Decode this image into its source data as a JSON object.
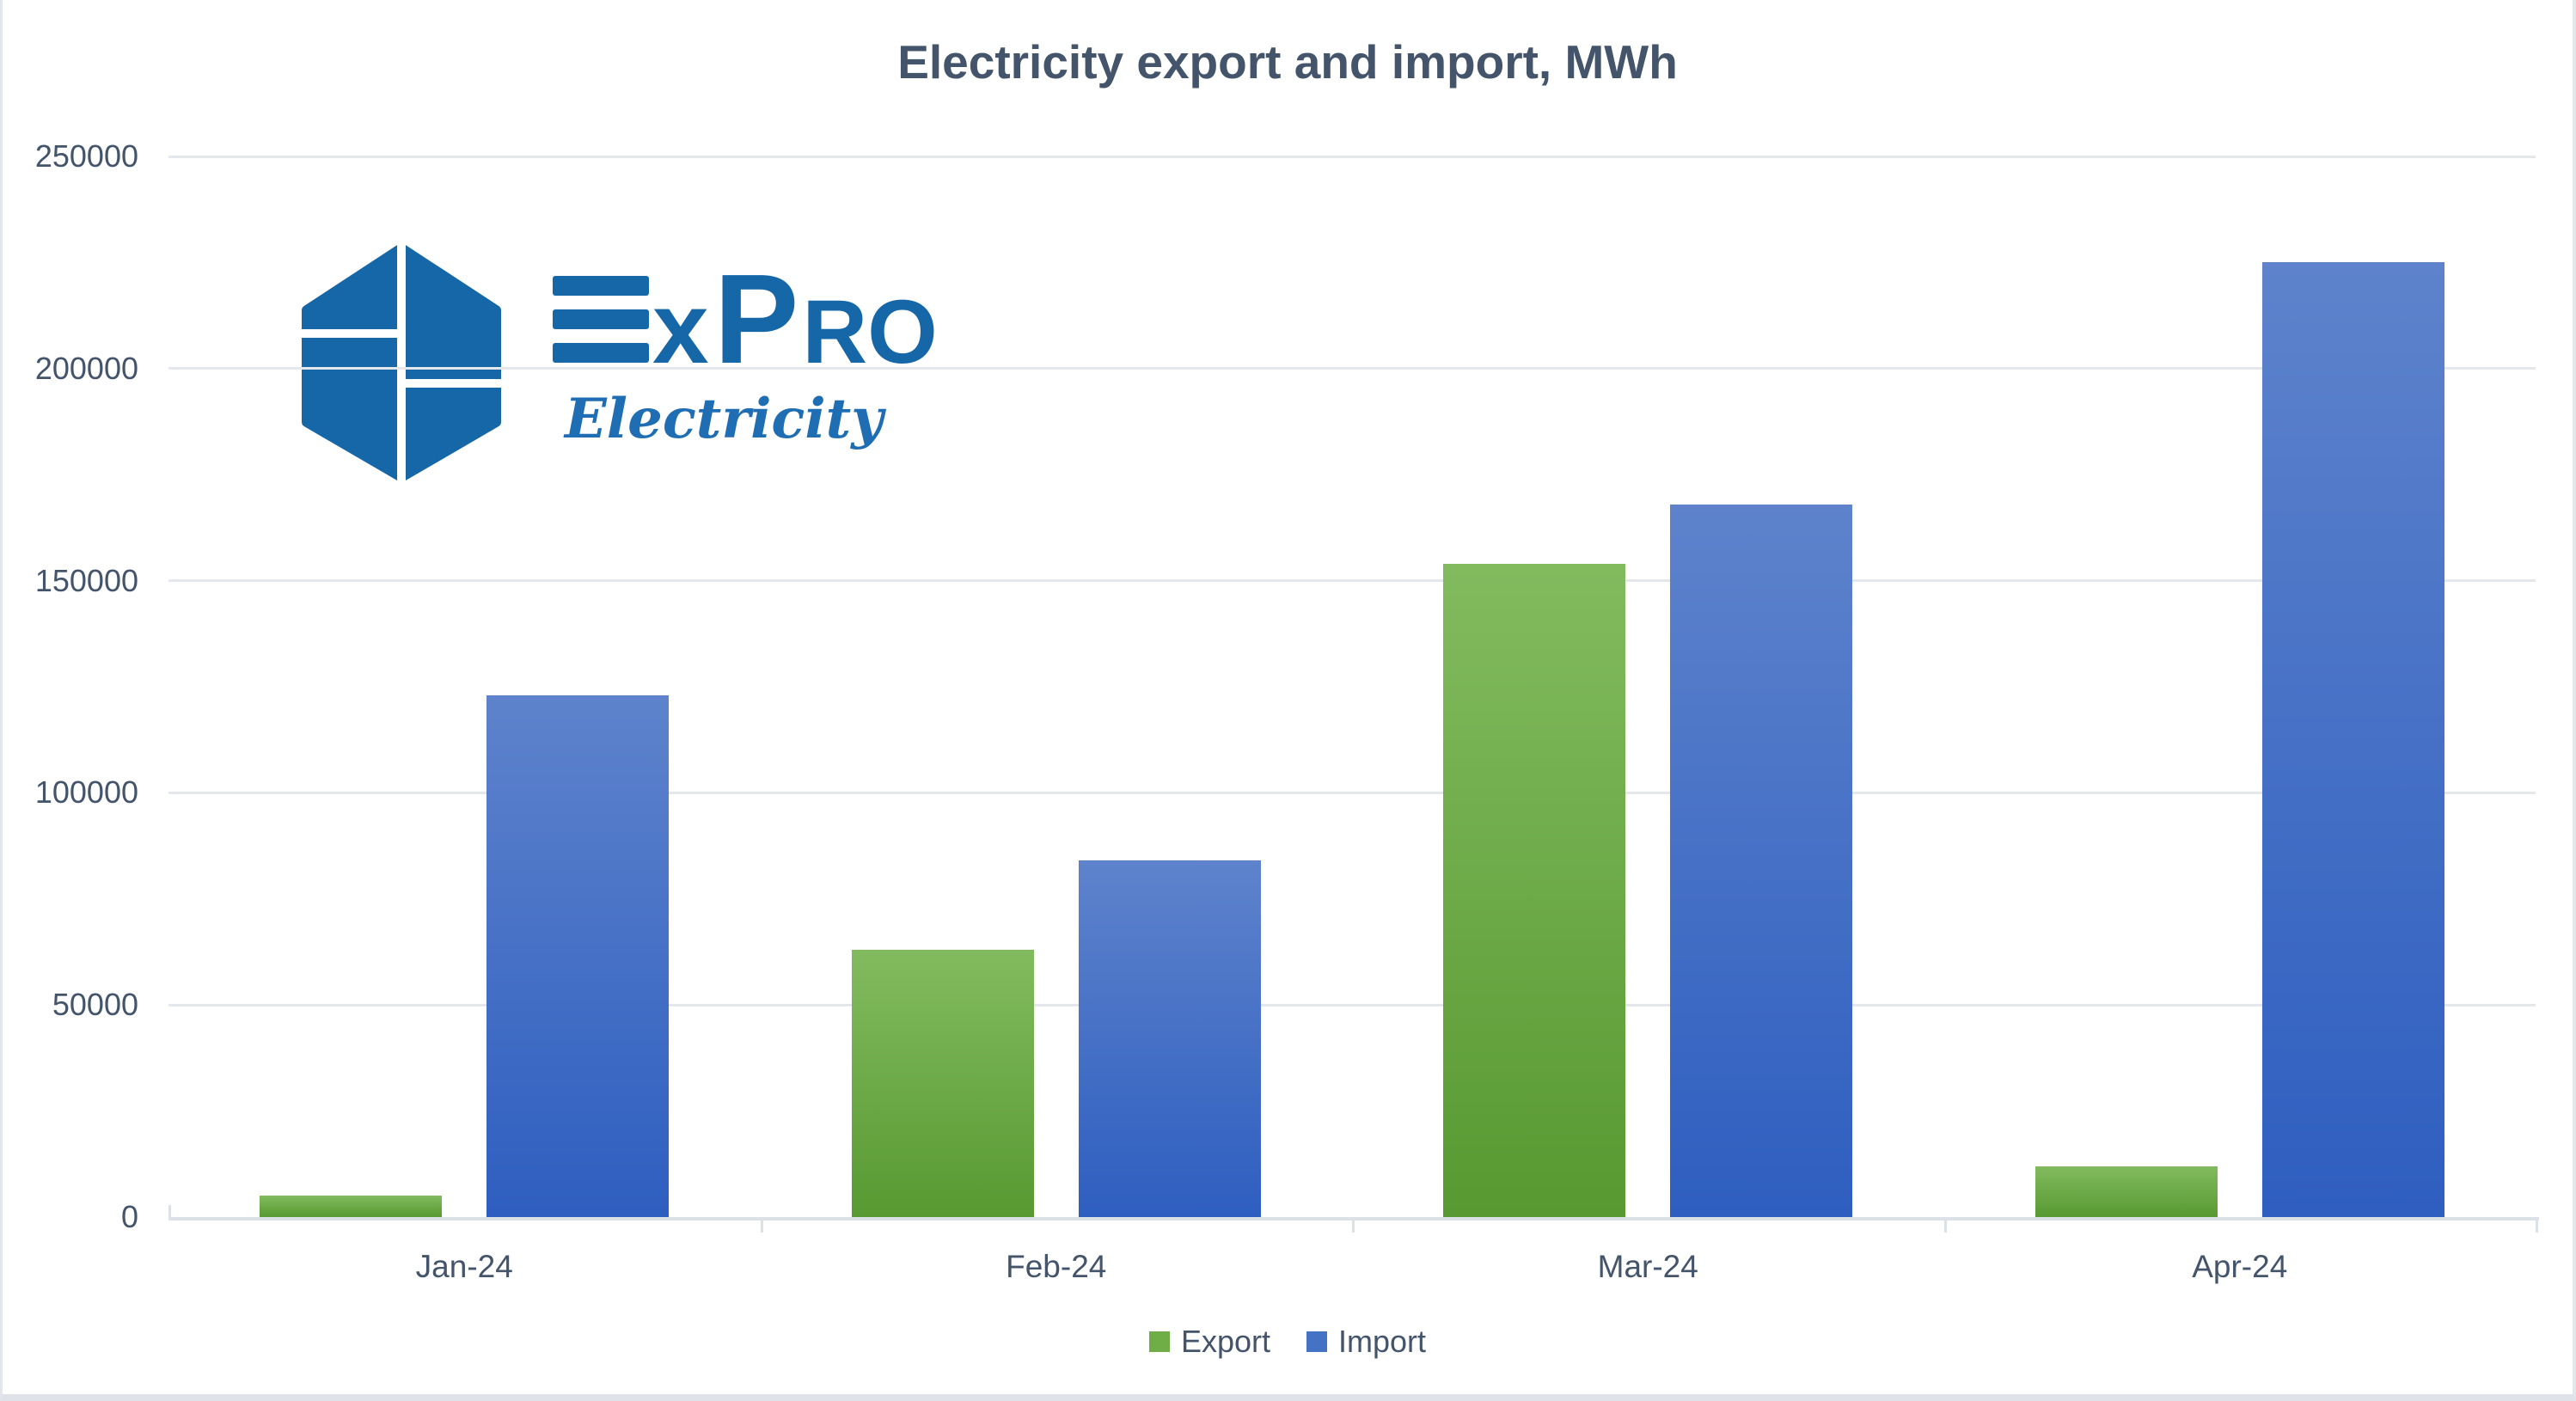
{
  "logo": {
    "name": "ExPro",
    "tagline": "Electricity",
    "color": "#1667a8",
    "tagline_color": "#1f6eb3"
  },
  "chart_data": {
    "type": "bar",
    "title": "Electricity export and import, MWh",
    "title_color": "#44546a",
    "categories": [
      "Jan-24",
      "Feb-24",
      "Mar-24",
      "Apr-24"
    ],
    "series": [
      {
        "name": "Export",
        "values": [
          5000,
          63000,
          154000,
          12000
        ],
        "color": "#6fad47",
        "gradient": [
          "#82bb5f",
          "#589931"
        ]
      },
      {
        "name": "Import",
        "values": [
          123000,
          84000,
          168000,
          225000
        ],
        "color": "#4472c4",
        "gradient": [
          "#5e83cc",
          "#2e5ec0"
        ]
      }
    ],
    "ylim": [
      0,
      250000
    ],
    "yticks": [
      0,
      50000,
      100000,
      150000,
      200000,
      250000
    ],
    "ytick_labels": [
      "0",
      "50000",
      "100000",
      "150000",
      "200000",
      "250000"
    ],
    "ylabel": "",
    "xlabel": "",
    "unit": "MWh",
    "grid": "horizontal",
    "legend_position": "bottom",
    "axis_text_color": "#44546a",
    "gridline_color": "#e4e7ec",
    "axis_line_color": "#dce0e7"
  }
}
